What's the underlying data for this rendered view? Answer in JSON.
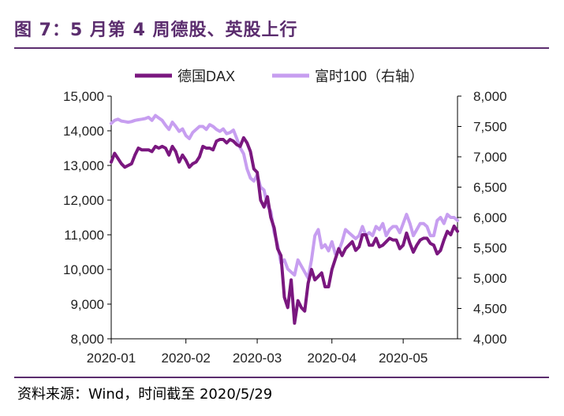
{
  "title": "图 7：5 月第 4 周德股、英股上行",
  "source": "资料来源：Wind，时间截至 2020/5/29",
  "colors": {
    "dax": "#7a177f",
    "ftse": "#c79ef0",
    "title": "#5b2d6e"
  },
  "chart_data": {
    "type": "line",
    "title": "",
    "xlabel": "",
    "ylabel": "",
    "y2label": "",
    "x_ticks": [
      "2020-01",
      "2020-02",
      "2020-03",
      "2020-04",
      "2020-05"
    ],
    "x_tick_pos": [
      0,
      22,
      43,
      65,
      86
    ],
    "y_left": {
      "min": 8000,
      "max": 15000,
      "ticks": [
        "8,000",
        "9,000",
        "10,000",
        "11,000",
        "12,000",
        "13,000",
        "14,000",
        "15,000"
      ]
    },
    "y_right": {
      "min": 4000,
      "max": 8000,
      "ticks": [
        "4,000",
        "4,500",
        "5,000",
        "5,500",
        "6,000",
        "6,500",
        "7,000",
        "7,500",
        "8,000"
      ]
    },
    "legend_position": "top",
    "series": [
      {
        "name": "德国DAX",
        "axis": "left",
        "values": [
          13100,
          13350,
          13200,
          13050,
          12950,
          13000,
          13050,
          13300,
          13500,
          13450,
          13450,
          13450,
          13400,
          13550,
          13500,
          13550,
          13500,
          13300,
          13550,
          13400,
          13100,
          13300,
          13150,
          12950,
          13050,
          13100,
          13250,
          13550,
          13500,
          13500,
          13450,
          13700,
          13750,
          13750,
          13650,
          13750,
          13700,
          13600,
          13550,
          13800,
          13650,
          13400,
          12900,
          12800,
          12000,
          11800,
          12100,
          11500,
          11200,
          10600,
          10400,
          9200,
          8900,
          9700,
          8450,
          9100,
          8900,
          8800,
          9600,
          10000,
          9700,
          9800,
          9900,
          9500,
          9500,
          10000,
          10300,
          10600,
          10400,
          10600,
          10700,
          10800,
          10550,
          10650,
          11000,
          11000,
          10700,
          10700,
          10900,
          10650,
          10700,
          10800,
          10900,
          10850,
          10850,
          10600,
          10700,
          11050,
          10750,
          10500,
          10700,
          10850,
          10900,
          10900,
          10750,
          10700,
          10450,
          10550,
          10850,
          11100,
          11000,
          11250,
          11100
        ]
      },
      {
        "name": "富时100（右轴）",
        "axis": "right",
        "values": [
          7550,
          7600,
          7620,
          7590,
          7580,
          7570,
          7580,
          7600,
          7610,
          7620,
          7630,
          7650,
          7600,
          7680,
          7640,
          7600,
          7520,
          7450,
          7570,
          7500,
          7420,
          7460,
          7350,
          7300,
          7400,
          7450,
          7500,
          7500,
          7450,
          7530,
          7500,
          7450,
          7420,
          7460,
          7380,
          7400,
          7440,
          7300,
          7150,
          7050,
          6800,
          6650,
          6600,
          6700,
          6500,
          6450,
          6200,
          6100,
          5750,
          5550,
          5250,
          5300,
          5150,
          5100,
          5050,
          5300,
          5200,
          5100,
          5000,
          5300,
          5700,
          5800,
          5500,
          5550,
          5450,
          5600,
          5400,
          5450,
          5600,
          5800,
          5750,
          5700,
          5650,
          5700,
          5850,
          5700,
          5750,
          5700,
          5850,
          5800,
          5900,
          5700,
          5800,
          5850,
          5850,
          5750,
          5900,
          6050,
          5900,
          5700,
          5800,
          5900,
          5900,
          5850,
          5700,
          5700,
          5950,
          6000,
          5900,
          6050,
          6000,
          6000,
          5950
        ]
      }
    ]
  }
}
